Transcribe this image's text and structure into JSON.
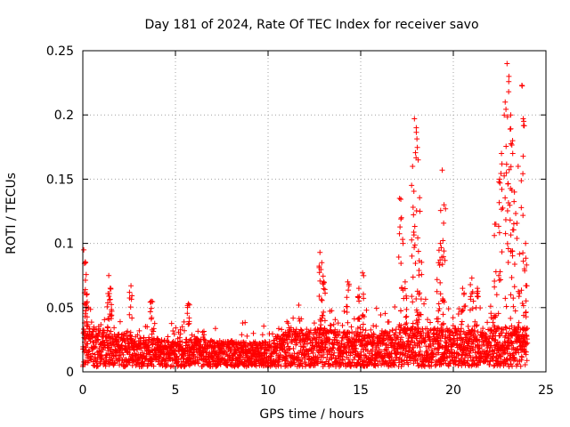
{
  "chart_data": {
    "type": "scatter",
    "title": "Day 181 of 2024, Rate Of TEC Index for receiver savo",
    "xlabel": "GPS time / hours",
    "ylabel": "ROTI / TECUs",
    "xlim": [
      0,
      25
    ],
    "ylim": [
      0,
      0.25
    ],
    "x_ticks": [
      0,
      5,
      10,
      15,
      20,
      25
    ],
    "x_tick_labels": [
      "0",
      "5",
      "10",
      "15",
      "20",
      "25"
    ],
    "y_ticks": [
      0,
      0.05,
      0.1,
      0.15,
      0.2,
      0.25
    ],
    "y_tick_labels": [
      "0",
      "0.05",
      "0.1",
      "0.15",
      "0.2",
      "0.25"
    ],
    "grid": true,
    "legend": "none",
    "marker": "+",
    "series": [
      {
        "name": "ROTI",
        "color": "#ff0000",
        "baseline_profile": [
          [
            0.0,
            0.03
          ],
          [
            1.0,
            0.03
          ],
          [
            2.0,
            0.026
          ],
          [
            3.0,
            0.024
          ],
          [
            4.0,
            0.022
          ],
          [
            5.0,
            0.02
          ],
          [
            6.0,
            0.022
          ],
          [
            7.0,
            0.021
          ],
          [
            8.0,
            0.02
          ],
          [
            9.0,
            0.019
          ],
          [
            10.0,
            0.02
          ],
          [
            11.0,
            0.028
          ],
          [
            12.0,
            0.03
          ],
          [
            13.0,
            0.03
          ],
          [
            14.0,
            0.028
          ],
          [
            15.0,
            0.027
          ],
          [
            16.0,
            0.026
          ],
          [
            17.0,
            0.03
          ],
          [
            18.0,
            0.032
          ],
          [
            19.0,
            0.03
          ],
          [
            20.0,
            0.03
          ],
          [
            21.0,
            0.03
          ],
          [
            22.0,
            0.03
          ],
          [
            23.0,
            0.032
          ],
          [
            24.0,
            0.03
          ]
        ],
        "peaks": [
          {
            "x": 0.05,
            "y": 0.095
          },
          {
            "x": 0.15,
            "y": 0.085
          },
          {
            "x": 0.2,
            "y": 0.06
          },
          {
            "x": 1.4,
            "y": 0.075
          },
          {
            "x": 1.5,
            "y": 0.065
          },
          {
            "x": 2.6,
            "y": 0.067
          },
          {
            "x": 3.7,
            "y": 0.055
          },
          {
            "x": 5.7,
            "y": 0.053
          },
          {
            "x": 12.8,
            "y": 0.093
          },
          {
            "x": 12.9,
            "y": 0.085
          },
          {
            "x": 13.0,
            "y": 0.07
          },
          {
            "x": 14.3,
            "y": 0.07
          },
          {
            "x": 14.9,
            "y": 0.065
          },
          {
            "x": 15.1,
            "y": 0.077
          },
          {
            "x": 17.1,
            "y": 0.135
          },
          {
            "x": 17.2,
            "y": 0.12
          },
          {
            "x": 17.4,
            "y": 0.07
          },
          {
            "x": 17.8,
            "y": 0.16
          },
          {
            "x": 17.9,
            "y": 0.197
          },
          {
            "x": 18.0,
            "y": 0.19
          },
          {
            "x": 18.1,
            "y": 0.165
          },
          {
            "x": 18.2,
            "y": 0.125
          },
          {
            "x": 19.2,
            "y": 0.085
          },
          {
            "x": 19.3,
            "y": 0.1
          },
          {
            "x": 19.4,
            "y": 0.157
          },
          {
            "x": 19.5,
            "y": 0.13
          },
          {
            "x": 20.5,
            "y": 0.065
          },
          {
            "x": 21.0,
            "y": 0.073
          },
          {
            "x": 21.3,
            "y": 0.065
          },
          {
            "x": 22.3,
            "y": 0.115
          },
          {
            "x": 22.5,
            "y": 0.15
          },
          {
            "x": 22.6,
            "y": 0.17
          },
          {
            "x": 22.8,
            "y": 0.21
          },
          {
            "x": 22.9,
            "y": 0.24
          },
          {
            "x": 23.0,
            "y": 0.23
          },
          {
            "x": 23.1,
            "y": 0.2
          },
          {
            "x": 23.2,
            "y": 0.18
          },
          {
            "x": 23.3,
            "y": 0.14
          },
          {
            "x": 23.5,
            "y": 0.16
          },
          {
            "x": 23.7,
            "y": 0.223
          },
          {
            "x": 23.8,
            "y": 0.195
          },
          {
            "x": 23.9,
            "y": 0.1
          }
        ]
      }
    ]
  }
}
